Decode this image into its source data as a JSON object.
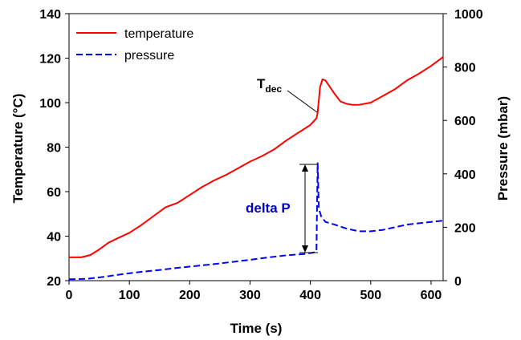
{
  "chart_data": {
    "type": "line",
    "xlabel": "Time (s)",
    "ylabel": "Temperature (°C)",
    "y2label": "Pressure (mbar)",
    "xlim": [
      0,
      620
    ],
    "ylim": [
      20,
      140
    ],
    "y2lim": [
      0,
      1000
    ],
    "x_ticks": [
      "0",
      "100",
      "200",
      "300",
      "400",
      "500",
      "600"
    ],
    "y_ticks": [
      "20",
      "40",
      "60",
      "80",
      "100",
      "120",
      "140"
    ],
    "y2_ticks": [
      "0",
      "200",
      "400",
      "600",
      "800",
      "1000"
    ],
    "grid": false,
    "legend_position": "top-left",
    "series": [
      {
        "name": "temperature",
        "axis": "left",
        "color": "#ff0000",
        "style": "solid",
        "x": [
          0,
          20,
          35,
          50,
          65,
          80,
          100,
          120,
          140,
          160,
          180,
          200,
          220,
          240,
          260,
          280,
          300,
          320,
          340,
          360,
          380,
          400,
          410,
          412,
          416,
          420,
          425,
          430,
          440,
          450,
          460,
          470,
          480,
          490,
          500,
          520,
          540,
          560,
          580,
          600,
          620
        ],
        "y": [
          30.5,
          30.5,
          31.5,
          34,
          37,
          39,
          41.5,
          45,
          49,
          53,
          55,
          58.5,
          62,
          65,
          67.5,
          70.5,
          73.5,
          76,
          79,
          83,
          86.5,
          90,
          93,
          95.5,
          107,
          110.5,
          110,
          108,
          104,
          100.5,
          99.5,
          99,
          99,
          99.5,
          100,
          103,
          106,
          110,
          113,
          116.5,
          120.5
        ]
      },
      {
        "name": "pressure",
        "axis": "right",
        "color": "#0000ff",
        "style": "dashed",
        "x": [
          0,
          30,
          60,
          90,
          120,
          150,
          180,
          210,
          240,
          270,
          300,
          330,
          360,
          390,
          405,
          410,
          412,
          414,
          418,
          425,
          440,
          460,
          480,
          500,
          520,
          540,
          560,
          580,
          600,
          620
        ],
        "y": [
          5,
          7,
          15,
          25,
          33,
          40,
          48,
          55,
          62,
          70,
          78,
          87,
          95,
          100,
          105,
          110,
          440,
          270,
          240,
          220,
          210,
          195,
          185,
          185,
          190,
          200,
          210,
          215,
          220,
          225
        ]
      }
    ],
    "annotations": [
      {
        "text": "T",
        "subscript": "dec",
        "x": 412,
        "y": 95.5,
        "axis": "left"
      },
      {
        "text": "delta P",
        "x": 390,
        "y_from": 105,
        "y_to": 440,
        "axis": "right"
      }
    ]
  }
}
